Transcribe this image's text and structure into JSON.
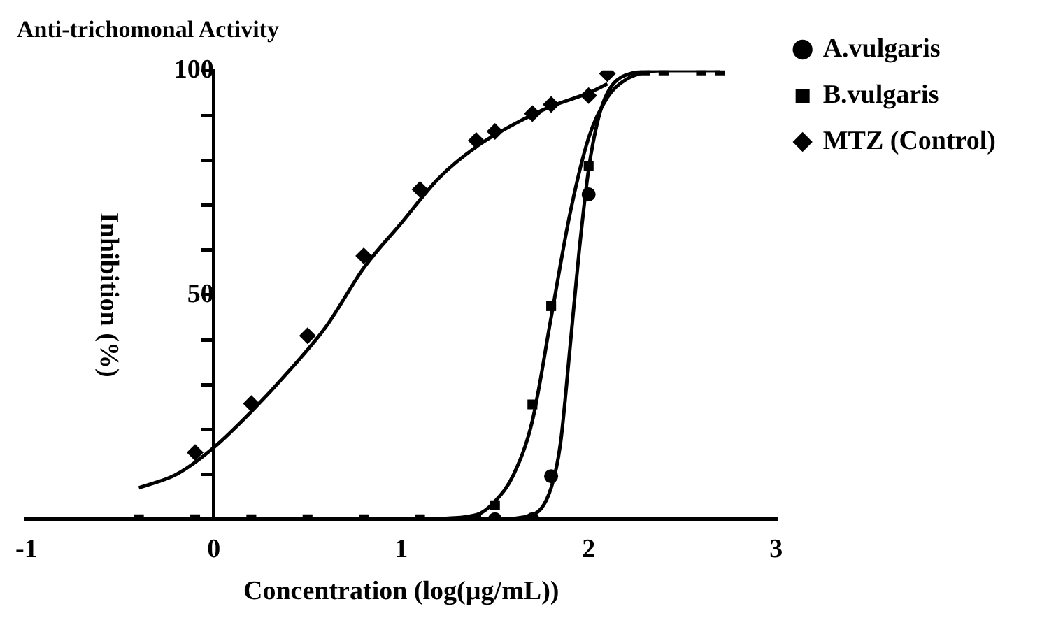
{
  "chart_data": {
    "type": "scatter",
    "title": "Anti-trichomonal Activity",
    "xlabel": "Concentration (log(µg/mL))",
    "ylabel": "Inhibition (%)",
    "xlim": [
      -1,
      3
    ],
    "xticks": [
      -1,
      0,
      1,
      2,
      3
    ],
    "ylim": [
      0,
      100
    ],
    "yticks": [
      {
        "value": 0,
        "label": null
      },
      {
        "value": 10,
        "label": null
      },
      {
        "value": 20,
        "label": null
      },
      {
        "value": 30,
        "label": null
      },
      {
        "value": 40,
        "label": null
      },
      50,
      {
        "value": 60,
        "label": null
      },
      {
        "value": 70,
        "label": null
      },
      {
        "value": 80,
        "label": null
      },
      {
        "value": 90,
        "label": null
      },
      100
    ],
    "grid": false,
    "legend": "right",
    "series": [
      {
        "name": "A.vulgaris",
        "color": "#000000",
        "marker": "circle",
        "x": [
          1.5,
          1.7,
          1.8,
          2.0
        ],
        "values": [
          0,
          0,
          9.6,
          72.4
        ]
      },
      {
        "name": "B.vulgaris",
        "color": "#000000",
        "marker": "square",
        "x": [
          -0.4,
          -0.1,
          0.2,
          0.5,
          0.8,
          1.1,
          1.4,
          1.5,
          1.7,
          1.8,
          2.0,
          2.3,
          2.4,
          2.6,
          2.7
        ],
        "values": [
          0,
          0,
          0,
          0,
          0,
          0,
          0,
          3.1,
          25.6,
          47.5,
          78.7,
          100,
          100,
          100,
          100
        ]
      },
      {
        "name": "MTZ (Control)",
        "color": "#000000",
        "marker": "diamond",
        "x": [
          -0.1,
          0.2,
          0.5,
          0.8,
          1.1,
          1.4,
          1.5,
          1.7,
          1.8,
          2.0,
          2.1
        ],
        "values": [
          14.9,
          25.8,
          40.9,
          58.7,
          73.5,
          84.4,
          86.4,
          90.4,
          92.4,
          94.4,
          99.3
        ]
      },
      {
        "type": "line",
        "color": "#000000",
        "marker": "none",
        "x": [
          1.5,
          1.7,
          1.8,
          1.85,
          1.9,
          1.95,
          2.0,
          2.05,
          2.1,
          2.2,
          2.4,
          2.7
        ],
        "values": [
          0,
          1,
          7,
          17,
          38,
          60,
          78,
          89,
          95,
          99,
          100,
          100
        ]
      },
      {
        "type": "line",
        "color": "#000000",
        "marker": "none",
        "x": [
          1.1,
          1.4,
          1.5,
          1.6,
          1.7,
          1.8,
          1.9,
          2.0,
          2.1,
          2.2,
          2.4,
          2.7
        ],
        "values": [
          0,
          1,
          4,
          10,
          22,
          45,
          68,
          85,
          94,
          98,
          100,
          100
        ]
      },
      {
        "type": "line",
        "color": "#000000",
        "marker": "none",
        "x": [
          -0.4,
          -0.2,
          0,
          0.2,
          0.4,
          0.6,
          0.8,
          1.0,
          1.2,
          1.4,
          1.6,
          1.8,
          2.0,
          2.1
        ],
        "values": [
          7,
          10,
          16,
          24,
          33,
          43,
          56,
          66,
          76,
          83,
          88,
          92,
          95,
          97
        ]
      }
    ]
  }
}
